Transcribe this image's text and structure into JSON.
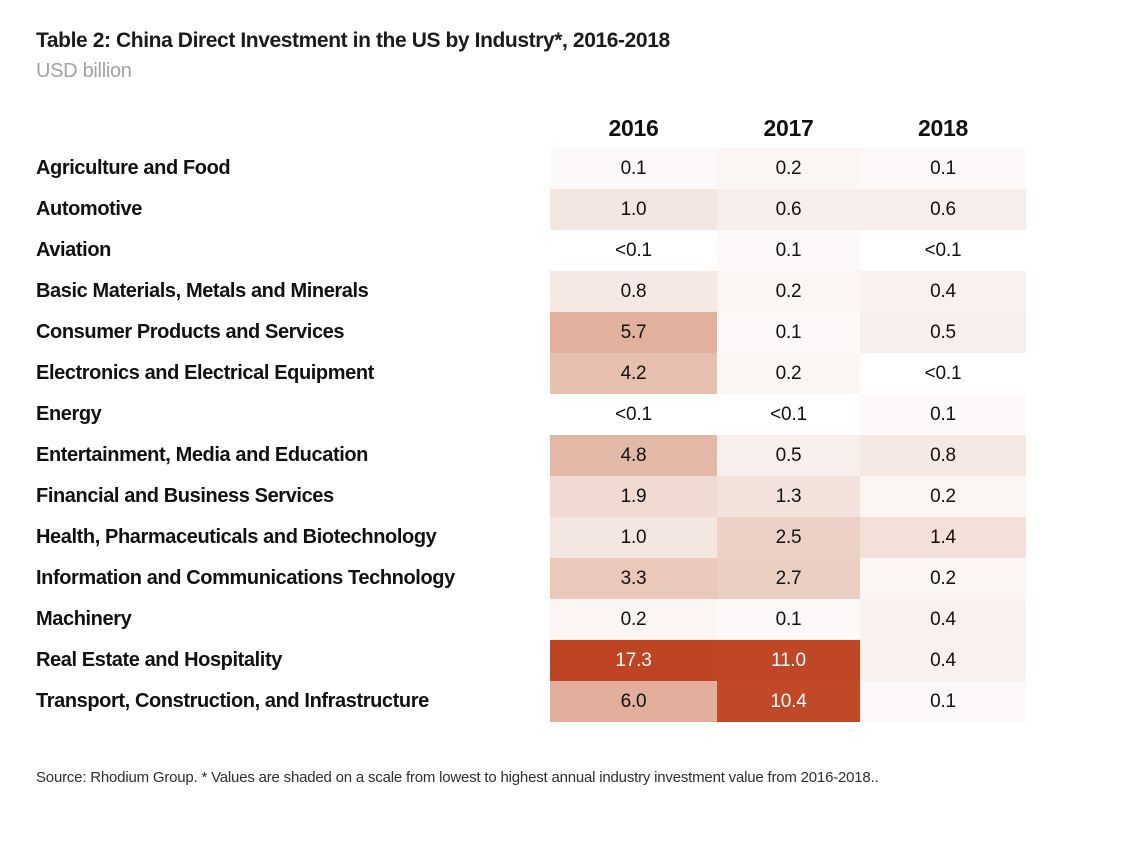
{
  "title": "Table 2: China Direct Investment in the US by Industry*, 2016-2018",
  "subtitle": "USD billion",
  "source_note": "Source: Rhodium Group. * Values are shaded on a scale from lowest to highest annual industry investment value from 2016-2018..",
  "colors": {
    "heat_low": "#FFFFFF",
    "heat_high": "#BE4423",
    "title_text": "#1B1B1B",
    "subtitle_text": "#A2A2A2",
    "dark_cell_text": "#FFFFFF"
  },
  "heat_scale": {
    "<0.1": {
      "bg": "#FFFFFF",
      "fg": "#111111"
    },
    "0.1": {
      "bg": "#FCF9F8",
      "fg": "#111111"
    },
    "0.2": {
      "bg": "#FBF6F4",
      "fg": "#111111"
    },
    "0.4": {
      "bg": "#F9F1EE",
      "fg": "#111111"
    },
    "0.5": {
      "bg": "#F8EFEC",
      "fg": "#111111"
    },
    "0.6": {
      "bg": "#F7EDEA",
      "fg": "#111111"
    },
    "0.8": {
      "bg": "#F6E9E4",
      "fg": "#111111"
    },
    "1.0": {
      "bg": "#F4E6E0",
      "fg": "#111111"
    },
    "1.3": {
      "bg": "#F3E2DB",
      "fg": "#111111"
    },
    "1.4": {
      "bg": "#F2E0D9",
      "fg": "#111111"
    },
    "1.9": {
      "bg": "#F0DAD1",
      "fg": "#111111"
    },
    "2.5": {
      "bg": "#EDD1C6",
      "fg": "#111111"
    },
    "2.7": {
      "bg": "#ECCFC3",
      "fg": "#111111"
    },
    "3.3": {
      "bg": "#EAC8BA",
      "fg": "#111111"
    },
    "4.2": {
      "bg": "#E7BFAE",
      "fg": "#111111"
    },
    "4.8": {
      "bg": "#E4B8A6",
      "fg": "#111111"
    },
    "5.7": {
      "bg": "#E2B19D",
      "fg": "#111111"
    },
    "6.0": {
      "bg": "#E1AF9B",
      "fg": "#111111"
    },
    "10.4": {
      "bg": "#C04A28",
      "fg": "#FFFFFF"
    },
    "11.0": {
      "bg": "#BF4726",
      "fg": "#FFFFFF"
    },
    "17.3": {
      "bg": "#BE4423",
      "fg": "#FFFFFF"
    }
  },
  "chart_data": {
    "type": "heatmap",
    "title": "Table 2: China Direct Investment in the US by Industry*, 2016-2018",
    "unit": "USD billion",
    "legend_position": "none",
    "columns": [
      "2016",
      "2017",
      "2018"
    ],
    "rows": [
      {
        "industry": "Agriculture and Food",
        "values": [
          "0.1",
          "0.2",
          "0.1"
        ]
      },
      {
        "industry": "Automotive",
        "values": [
          "1.0",
          "0.6",
          "0.6"
        ]
      },
      {
        "industry": "Aviation",
        "values": [
          "<0.1",
          "0.1",
          "<0.1"
        ]
      },
      {
        "industry": "Basic Materials, Metals and Minerals",
        "values": [
          "0.8",
          "0.2",
          "0.4"
        ]
      },
      {
        "industry": "Consumer Products and Services",
        "values": [
          "5.7",
          "0.1",
          "0.5"
        ]
      },
      {
        "industry": "Electronics and Electrical Equipment",
        "values": [
          "4.2",
          "0.2",
          "<0.1"
        ]
      },
      {
        "industry": "Energy",
        "values": [
          "<0.1",
          "<0.1",
          "0.1"
        ]
      },
      {
        "industry": "Entertainment, Media and Education",
        "values": [
          "4.8",
          "0.5",
          "0.8"
        ]
      },
      {
        "industry": "Financial and Business Services",
        "values": [
          "1.9",
          "1.3",
          "0.2"
        ]
      },
      {
        "industry": "Health, Pharmaceuticals and Biotechnology",
        "values": [
          "1.0",
          "2.5",
          "1.4"
        ]
      },
      {
        "industry": "Information and Communications Technology",
        "values": [
          "3.3",
          "2.7",
          "0.2"
        ]
      },
      {
        "industry": "Machinery",
        "values": [
          "0.2",
          "0.1",
          "0.4"
        ]
      },
      {
        "industry": "Real Estate and Hospitality",
        "values": [
          "17.3",
          "11.0",
          "0.4"
        ]
      },
      {
        "industry": "Transport, Construction, and Infrastructure",
        "values": [
          "6.0",
          "10.4",
          "0.1"
        ]
      }
    ]
  }
}
